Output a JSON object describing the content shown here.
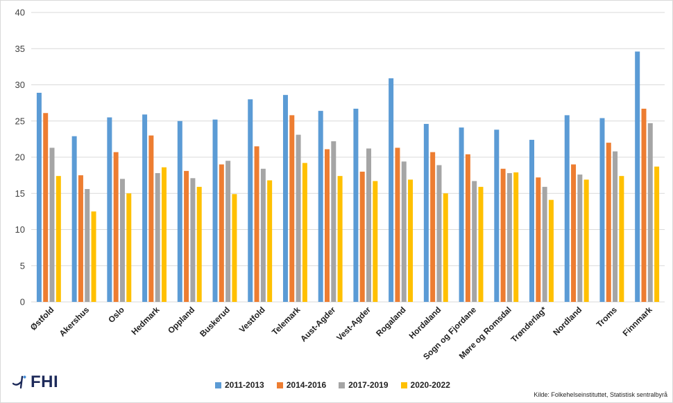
{
  "chart_data": {
    "type": "bar",
    "title": "",
    "xlabel": "",
    "ylabel": "",
    "ylim": [
      0,
      40
    ],
    "yticks": [
      0,
      5,
      10,
      15,
      20,
      25,
      30,
      35,
      40
    ],
    "grid": true,
    "legend_position": "bottom",
    "categories": [
      "Østfold",
      "Akershus",
      "Oslo",
      "Hedmark",
      "Oppland",
      "Buskerud",
      "Vestfold",
      "Telemark",
      "Aust-Agder",
      "Vest-Agder",
      "Rogaland",
      "Hordaland",
      "Sogn og Fjordane",
      "Møre og Romsdal",
      "Trønderlag*",
      "Nordland",
      "Troms",
      "Finnmark"
    ],
    "series": [
      {
        "name": "2011-2013",
        "color": "#5b9bd5",
        "values": [
          28.9,
          22.9,
          25.5,
          25.9,
          25.0,
          25.2,
          28.0,
          28.6,
          26.4,
          26.7,
          30.9,
          24.6,
          24.1,
          23.8,
          22.4,
          25.8,
          25.4,
          34.6
        ]
      },
      {
        "name": "2014-2016",
        "color": "#ed7d31",
        "values": [
          26.1,
          17.5,
          20.7,
          23.0,
          18.1,
          19.0,
          21.5,
          25.8,
          21.1,
          18.0,
          21.3,
          20.7,
          20.4,
          18.4,
          17.2,
          19.0,
          22.0,
          26.7
        ]
      },
      {
        "name": "2017-2019",
        "color": "#a5a5a5",
        "values": [
          21.3,
          15.6,
          17.0,
          17.8,
          17.1,
          19.5,
          18.4,
          23.1,
          22.2,
          21.2,
          19.4,
          18.9,
          16.7,
          17.8,
          15.9,
          17.6,
          20.8,
          24.7
        ]
      },
      {
        "name": "2020-2022",
        "color": "#ffc000",
        "values": [
          17.4,
          12.5,
          15.0,
          18.6,
          15.9,
          14.9,
          16.8,
          19.2,
          17.4,
          16.7,
          16.9,
          15.0,
          15.9,
          17.9,
          14.1,
          16.9,
          17.4,
          18.7
        ]
      }
    ]
  },
  "branding": {
    "logo_text": "FHI",
    "logo_icon": "fhi-logo-icon"
  },
  "source": "Kilde: Folkehelseinstituttet, Statistisk sentralbyrå"
}
